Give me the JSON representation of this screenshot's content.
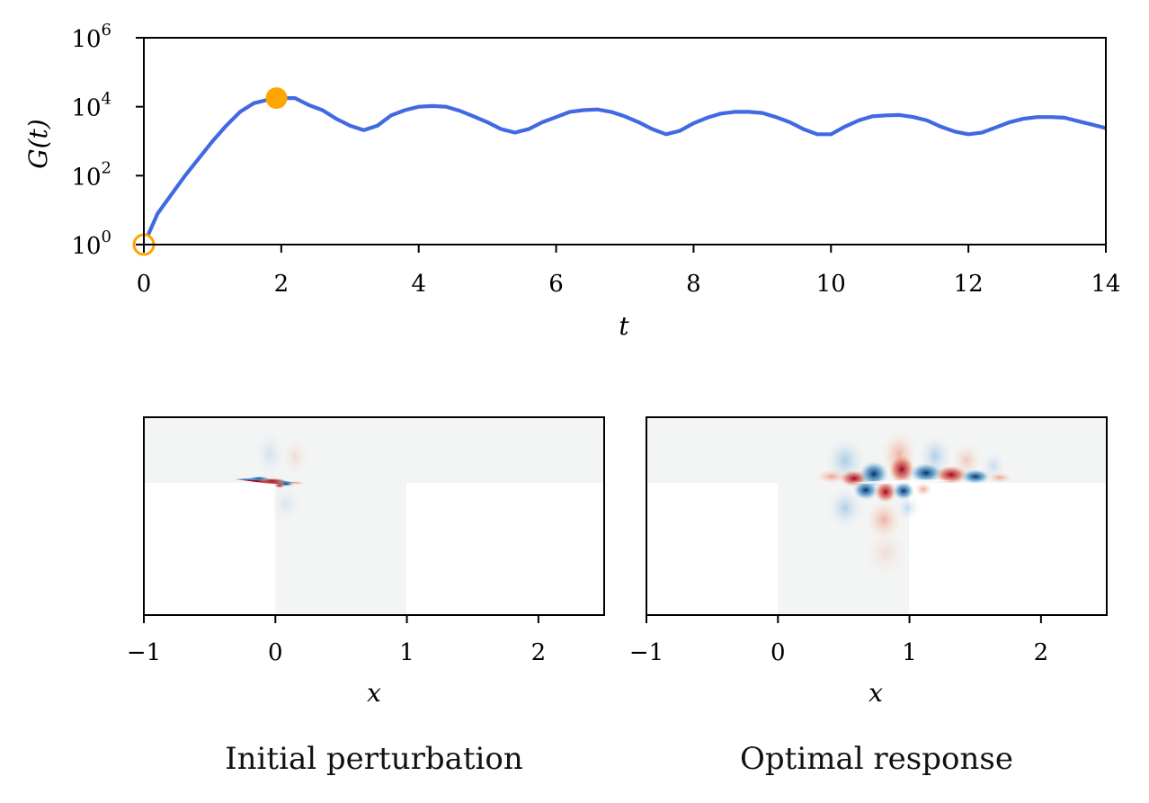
{
  "chart_data": [
    {
      "type": "line",
      "xlabel": "t",
      "ylabel": "G(t)",
      "xlim": [
        0,
        14
      ],
      "ylim_log10": [
        0,
        6
      ],
      "yscale": "log",
      "xticks": [
        "0",
        "2",
        "4",
        "6",
        "8",
        "10",
        "12",
        "14"
      ],
      "yticks": [
        {
          "base": "10",
          "exp": "0"
        },
        {
          "base": "10",
          "exp": "2"
        },
        {
          "base": "10",
          "exp": "4"
        },
        {
          "base": "10",
          "exp": "6"
        }
      ],
      "series": [
        {
          "color": "#4169e1",
          "x": [
            0,
            0.2,
            0.4,
            0.6,
            0.8,
            1.0,
            1.2,
            1.4,
            1.6,
            1.8,
            2.0,
            2.2,
            2.4,
            2.6,
            2.8,
            3.0,
            3.2,
            3.4,
            3.6,
            3.8,
            4.0,
            4.2,
            4.4,
            4.6,
            4.8,
            5.0,
            5.2,
            5.4,
            5.6,
            5.8,
            6.0,
            6.2,
            6.4,
            6.6,
            6.8,
            7.0,
            7.2,
            7.4,
            7.6,
            7.8,
            8.0,
            8.2,
            8.4,
            8.6,
            8.8,
            9.0,
            9.2,
            9.4,
            9.6,
            9.8,
            10.0,
            10.2,
            10.4,
            10.6,
            10.8,
            11.0,
            11.2,
            11.4,
            11.6,
            11.8,
            12.0,
            12.2,
            12.4,
            12.6,
            12.8,
            13.0,
            13.2,
            13.4,
            13.6,
            13.8,
            14.0
          ],
          "log10y": [
            0.0,
            0.9,
            1.45,
            2.0,
            2.5,
            3.0,
            3.45,
            3.85,
            4.1,
            4.2,
            4.25,
            4.25,
            4.05,
            3.9,
            3.65,
            3.45,
            3.32,
            3.45,
            3.75,
            3.9,
            4.0,
            4.02,
            4.0,
            3.88,
            3.72,
            3.55,
            3.35,
            3.25,
            3.35,
            3.55,
            3.7,
            3.85,
            3.9,
            3.92,
            3.85,
            3.72,
            3.55,
            3.35,
            3.2,
            3.3,
            3.52,
            3.68,
            3.8,
            3.85,
            3.85,
            3.82,
            3.7,
            3.55,
            3.35,
            3.2,
            3.2,
            3.42,
            3.6,
            3.72,
            3.75,
            3.76,
            3.7,
            3.6,
            3.42,
            3.28,
            3.2,
            3.25,
            3.4,
            3.55,
            3.65,
            3.7,
            3.7,
            3.68,
            3.58,
            3.48,
            3.38
          ]
        }
      ],
      "markers": [
        {
          "x": 0,
          "log10y": 0,
          "style": "open-circle",
          "color": "#ffa500"
        },
        {
          "x": 1.93,
          "log10y": 4.25,
          "style": "filled-circle",
          "color": "#ffa500"
        }
      ]
    },
    {
      "type": "heatmap",
      "xlabel": "x",
      "xlim": [
        -1,
        2.5
      ],
      "xticks": [
        "−1",
        "0",
        "1",
        "2"
      ],
      "caption": "Initial perturbation",
      "colormap": "RdBu_r"
    },
    {
      "type": "heatmap",
      "xlabel": "x",
      "xlim": [
        -1,
        2.5
      ],
      "xticks": [
        "−1",
        "0",
        "1",
        "2"
      ],
      "caption": "Optimal response",
      "colormap": "RdBu_r"
    }
  ],
  "colors": {
    "line": "#4169e1",
    "marker": "#ffa500",
    "red": "#a50026",
    "blue": "#08519c",
    "background_field": "#f3f4f4"
  }
}
